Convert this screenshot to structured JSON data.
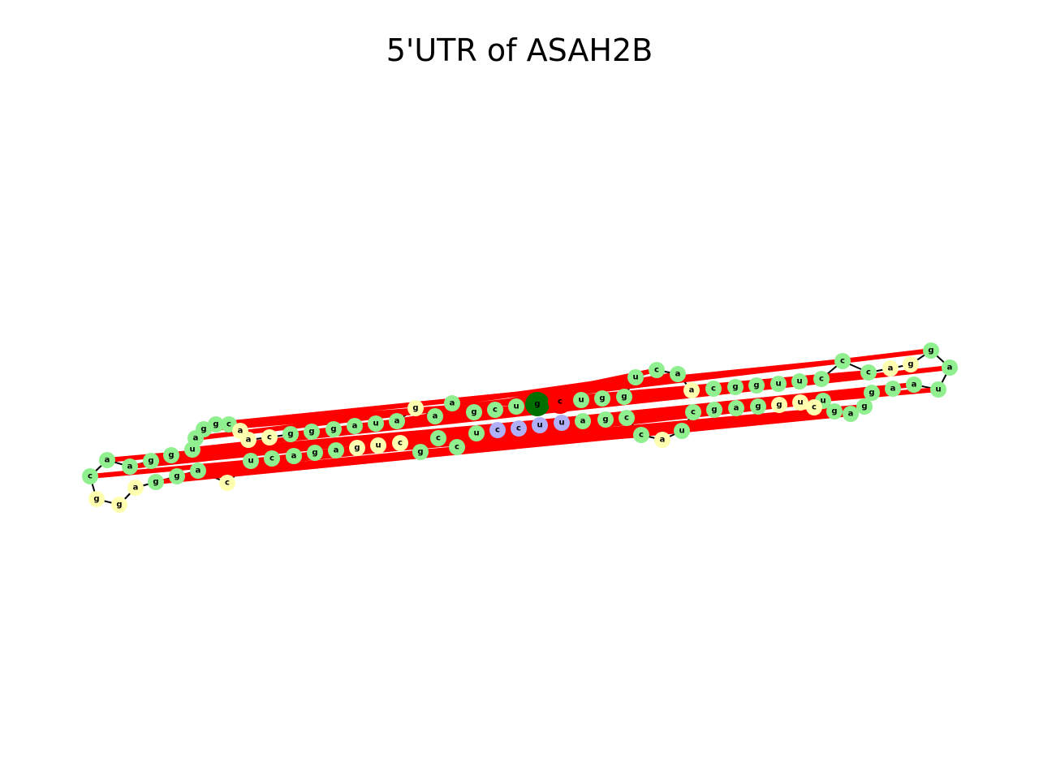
{
  "title": "5'UTR of ASAH2B",
  "colors": {
    "paired": "#90f090",
    "unpaired": "#ffffb0",
    "hairpin": "#b0b0f8",
    "start": "#007000",
    "end": "#ff0000",
    "backbone": "#000000",
    "pair_bond": "#ff0000"
  },
  "structure": {
    "sequence": "gcuggucaacgguucccaggauaaggagucuggagcuaccgauuccuccgcugagacucaggaggcaagguaggcaacgggauagaagcuuug",
    "dot_bracket": "((((((((.((((((((..((((((((((...(((((.((((....))))...))))).)))...))))))))))...)))))).))))))))"
  }
}
